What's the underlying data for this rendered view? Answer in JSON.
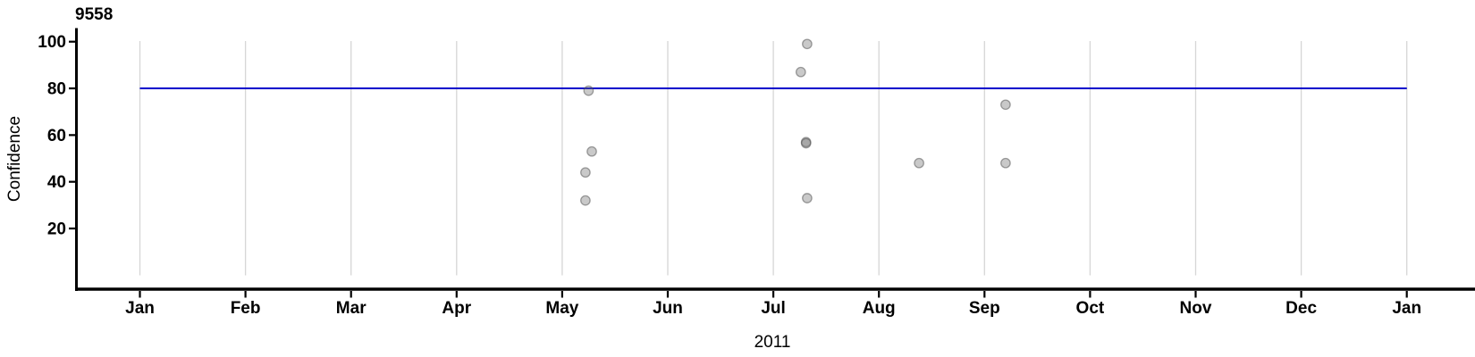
{
  "chart_data": {
    "type": "scatter",
    "title": "9558",
    "ylabel": "Confidence",
    "xlabel": "2011",
    "x_axis": {
      "tick_labels": [
        "Jan",
        "Feb",
        "Mar",
        "Apr",
        "May",
        "Jun",
        "Jul",
        "Aug",
        "Sep",
        "Oct",
        "Nov",
        "Dec",
        "Jan"
      ],
      "year_label": "2011",
      "range_months": [
        0,
        12
      ]
    },
    "y_axis": {
      "tick_values": [
        100,
        80,
        60,
        40,
        20
      ],
      "range": [
        0,
        105
      ]
    },
    "reference_line": {
      "value": 80,
      "color": "#0000cc"
    },
    "grid": "vertical gridline at each month tick",
    "legend": "none",
    "points": [
      {
        "month": "May",
        "month_frac": 4.25,
        "confidence": 79
      },
      {
        "month": "May",
        "month_frac": 4.28,
        "confidence": 53
      },
      {
        "month": "May",
        "month_frac": 4.22,
        "confidence": 44
      },
      {
        "month": "May",
        "month_frac": 4.22,
        "confidence": 32
      },
      {
        "month": "Jul",
        "month_frac": 6.32,
        "confidence": 99
      },
      {
        "month": "Jul",
        "month_frac": 6.26,
        "confidence": 87
      },
      {
        "month": "Jul",
        "month_frac": 6.31,
        "confidence": 57
      },
      {
        "month": "Jul",
        "month_frac": 6.31,
        "confidence": 56.5
      },
      {
        "month": "Jul",
        "month_frac": 6.32,
        "confidence": 33
      },
      {
        "month": "Aug",
        "month_frac": 7.38,
        "confidence": 48
      },
      {
        "month": "Sep",
        "month_frac": 8.2,
        "confidence": 73
      },
      {
        "month": "Sep",
        "month_frac": 8.2,
        "confidence": 48
      }
    ],
    "colors": {
      "axis": "#000000",
      "gridline": "#d6d6d6",
      "reference_line": "#0000cc",
      "point_fill": "rgba(116,116,116,0.39)",
      "point_stroke": "rgba(85,85,85,0.55)",
      "text": "#000000",
      "background": "#ffffff"
    }
  }
}
